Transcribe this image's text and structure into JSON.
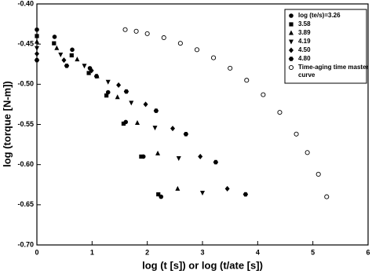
{
  "chart_data": {
    "type": "scatter",
    "xlabel": "log (t [s]) or log (t/ate [s])",
    "ylabel": "log (torque [N-m])",
    "xlim": [
      0,
      6
    ],
    "xticks": [
      0,
      1,
      2,
      3,
      4,
      5,
      6
    ],
    "ylim": [
      -0.7,
      -0.4
    ],
    "yticks": [
      {
        "value": -0.4,
        "label": "-0.40"
      },
      -0.45,
      {
        "value": -0.5,
        "label": "-0.50"
      },
      -0.55,
      {
        "value": -0.6,
        "label": "-0.60"
      },
      -0.65,
      {
        "value": -0.7,
        "label": "-0.70"
      }
    ],
    "legend": "upper right",
    "series": [
      {
        "name": "log (te/s)=3.26",
        "color": "#000000",
        "marker": "circle",
        "x": [
          0,
          0.32,
          0.64,
          0.96,
          1.29,
          1.61,
          1.93,
          2.25
        ],
        "values": [
          -0.432,
          -0.441,
          -0.457,
          -0.48,
          -0.51,
          -0.547,
          -0.59,
          -0.64
        ]
      },
      {
        "name": "3.58",
        "color": "#000000",
        "marker": "square",
        "x": [
          0,
          0.31,
          0.63,
          0.94,
          1.26,
          1.57,
          1.89,
          2.2
        ],
        "values": [
          -0.44,
          -0.449,
          -0.464,
          -0.486,
          -0.514,
          -0.549,
          -0.59,
          -0.637
        ]
      },
      {
        "name": "3.89",
        "color": "#000000",
        "marker": "triangle",
        "x": [
          0,
          0.36,
          0.73,
          1.09,
          1.46,
          1.82,
          2.19,
          2.55
        ],
        "values": [
          -0.447,
          -0.455,
          -0.469,
          -0.49,
          -0.516,
          -0.548,
          -0.586,
          -0.63
        ]
      },
      {
        "name": "4.19",
        "color": "#000000",
        "marker": "triangle-down",
        "x": [
          0,
          0.43,
          0.86,
          1.29,
          1.71,
          2.14,
          2.57,
          3.0
        ],
        "values": [
          -0.455,
          -0.463,
          -0.477,
          -0.497,
          -0.523,
          -0.554,
          -0.592,
          -0.635
        ]
      },
      {
        "name": "4.50",
        "color": "#000000",
        "marker": "diamond",
        "x": [
          0,
          0.49,
          0.99,
          1.48,
          1.97,
          2.46,
          2.96,
          3.45
        ],
        "values": [
          -0.462,
          -0.47,
          -0.483,
          -0.501,
          -0.525,
          -0.555,
          -0.59,
          -0.63
        ]
      },
      {
        "name": "4.80",
        "color": "#000000",
        "marker": "hexagon",
        "x": [
          0,
          0.54,
          1.08,
          1.62,
          2.16,
          2.7,
          3.24,
          3.78
        ],
        "values": [
          -0.47,
          -0.477,
          -0.49,
          -0.509,
          -0.533,
          -0.562,
          -0.597,
          -0.637
        ]
      },
      {
        "name": "Time-aging time master curve",
        "color": "#000000",
        "marker": "open-circle",
        "x": [
          1.6,
          1.8,
          2.0,
          2.3,
          2.6,
          2.9,
          3.2,
          3.5,
          3.8,
          4.1,
          4.4,
          4.7,
          4.9,
          5.1,
          5.25
        ],
        "values": [
          -0.432,
          -0.434,
          -0.437,
          -0.442,
          -0.449,
          -0.457,
          -0.467,
          -0.48,
          -0.495,
          -0.513,
          -0.535,
          -0.562,
          -0.585,
          -0.612,
          -0.64
        ]
      }
    ]
  }
}
